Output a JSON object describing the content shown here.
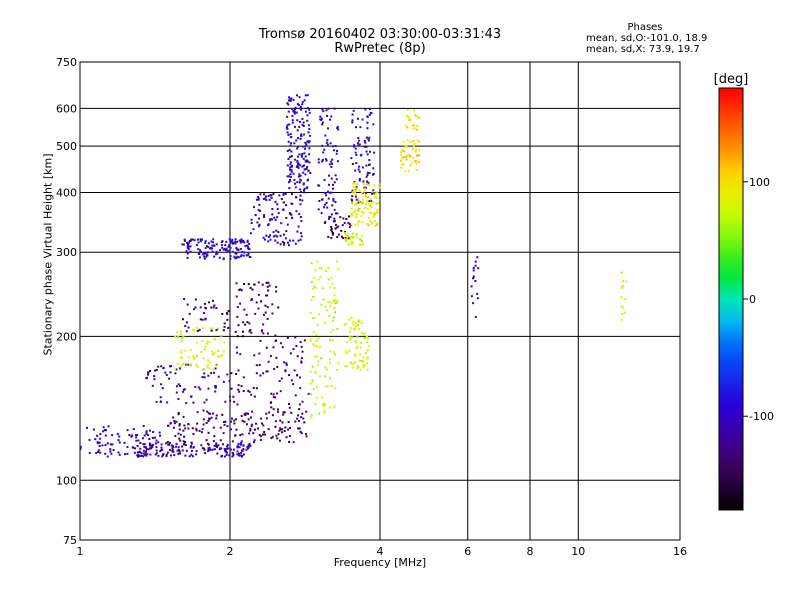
{
  "header": {
    "title_line1": "Tromsø 20160402 03:30:00-03:31:43",
    "title_line2": "RwPretec (8p)"
  },
  "stats": {
    "heading": "Phases",
    "line_o": "mean, sd,O:-101.0, 18.9",
    "line_x": "mean, sd,X:  73.9, 19.7"
  },
  "chart_data": {
    "type": "scatter",
    "title": "Tromsø 20160402 03:30:00-03:31:43",
    "subtitle": "RwPretec (8p)",
    "xlabel": "Frequency [MHz]",
    "ylabel": "Stationary phase Virtual Height [km]",
    "x_scale": "log",
    "y_scale": "log",
    "xlim": [
      1,
      16
    ],
    "ylim": [
      75,
      750
    ],
    "x_ticks": [
      1,
      2,
      4,
      6,
      8,
      10,
      16
    ],
    "y_ticks": [
      75,
      100,
      200,
      300,
      400,
      500,
      600,
      750
    ],
    "grid": true,
    "colorbar": {
      "label": "[deg]",
      "range": [
        -180,
        180
      ],
      "ticks": [
        -100,
        0,
        100
      ]
    },
    "series": [
      {
        "name": "O",
        "mean_phase": -101.0,
        "sd_phase": 18.9
      },
      {
        "name": "X",
        "mean_phase": 73.9,
        "sd_phase": 19.7
      }
    ],
    "clusters": [
      {
        "x": [
          1.0,
          1.45
        ],
        "y": [
          112,
          130
        ],
        "phase": -105,
        "n": 90
      },
      {
        "x": [
          1.3,
          2.2
        ],
        "y": [
          112,
          120
        ],
        "phase": -115,
        "n": 160
      },
      {
        "x": [
          1.5,
          2.9
        ],
        "y": [
          120,
          140
        ],
        "phase": -135,
        "n": 160
      },
      {
        "x": [
          1.35,
          2.0
        ],
        "y": [
          145,
          175
        ],
        "phase": -110,
        "n": 70
      },
      {
        "x": [
          1.55,
          1.95
        ],
        "y": [
          170,
          210
        ],
        "phase": 80,
        "n": 70
      },
      {
        "x": [
          1.6,
          2.0
        ],
        "y": [
          205,
          240
        ],
        "phase": -130,
        "n": 40
      },
      {
        "x": [
          2.0,
          2.9
        ],
        "y": [
          140,
          200
        ],
        "phase": -125,
        "n": 90
      },
      {
        "x": [
          2.05,
          2.5
        ],
        "y": [
          200,
          260
        ],
        "phase": -145,
        "n": 60
      },
      {
        "x": [
          1.6,
          2.2
        ],
        "y": [
          290,
          320
        ],
        "phase": -95,
        "n": 140
      },
      {
        "x": [
          2.2,
          2.8
        ],
        "y": [
          310,
          400
        ],
        "phase": -105,
        "n": 110
      },
      {
        "x": [
          2.6,
          2.9
        ],
        "y": [
          400,
          640
        ],
        "phase": -100,
        "n": 170
      },
      {
        "x": [
          3.0,
          3.3
        ],
        "y": [
          350,
          600
        ],
        "phase": -105,
        "n": 80
      },
      {
        "x": [
          3.5,
          3.9
        ],
        "y": [
          380,
          600
        ],
        "phase": -100,
        "n": 90
      },
      {
        "x": [
          3.1,
          3.5
        ],
        "y": [
          320,
          360
        ],
        "phase": -140,
        "n": 40
      },
      {
        "x": [
          2.9,
          3.3
        ],
        "y": [
          135,
          290
        ],
        "phase": 75,
        "n": 110
      },
      {
        "x": [
          3.4,
          3.8
        ],
        "y": [
          170,
          220
        ],
        "phase": 80,
        "n": 70
      },
      {
        "x": [
          3.4,
          3.7
        ],
        "y": [
          310,
          330
        ],
        "phase": 75,
        "n": 30
      },
      {
        "x": [
          3.5,
          4.0
        ],
        "y": [
          340,
          420
        ],
        "phase": 90,
        "n": 100
      },
      {
        "x": [
          4.4,
          4.8
        ],
        "y": [
          440,
          520
        ],
        "phase": 100,
        "n": 45
      },
      {
        "x": [
          4.5,
          4.8
        ],
        "y": [
          540,
          600
        ],
        "phase": 90,
        "n": 20
      },
      {
        "x": [
          6.1,
          6.3
        ],
        "y": [
          200,
          300
        ],
        "phase": -115,
        "n": 15
      },
      {
        "x": [
          12.2,
          12.5
        ],
        "y": [
          210,
          300
        ],
        "phase": 85,
        "n": 12
      }
    ]
  }
}
